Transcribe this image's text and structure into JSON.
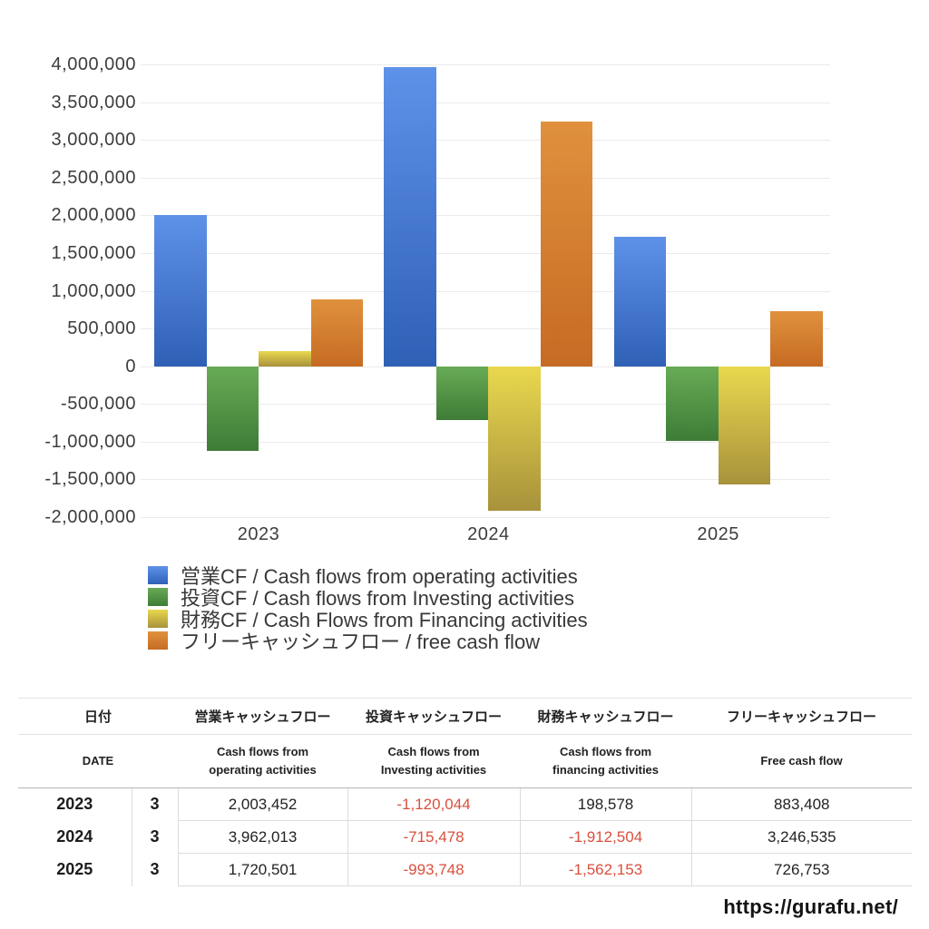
{
  "chart_data": {
    "type": "bar",
    "title": "",
    "xlabel": "",
    "ylabel": "",
    "categories": [
      "2023",
      "2024",
      "2025"
    ],
    "series": [
      {
        "name": "営業CF / Cash flows from operating activities",
        "values": [
          2003452,
          3962013,
          1720501
        ],
        "color_top": "#5e92e8",
        "color_bottom": "#2e60b6"
      },
      {
        "name": "投資CF / Cash flows from Investing activities",
        "values": [
          -1120044,
          -715478,
          -993748
        ],
        "color_top": "#68ab55",
        "color_bottom": "#3e7c37"
      },
      {
        "name": "財務CF / Cash Flows from Financing activities",
        "values": [
          198578,
          -1912504,
          -1562153
        ],
        "color_top": "#e9d84e",
        "color_bottom": "#a8923c"
      },
      {
        "name": "フリーキャッシュフロー / free cash flow",
        "values": [
          883408,
          3246535,
          726753
        ],
        "color_top": "#e0913d",
        "color_bottom": "#c66b24"
      }
    ],
    "ylim": [
      -2000000,
      4000000
    ],
    "y_ticks": [
      "4,000,000",
      "3,500,000",
      "3,000,000",
      "2,500,000",
      "2,000,000",
      "1,500,000",
      "1,000,000",
      "500,000",
      "0",
      "-500,000",
      "-1,000,000",
      "-1,500,000",
      "-2,000,000"
    ],
    "grid": true,
    "legend_position": "bottom-left"
  },
  "table": {
    "headers_jp": [
      "日付",
      "営業キャッシュフロー",
      "投資キャッシュフロー",
      "財務キャッシュフロー",
      "フリーキャッシュフロー"
    ],
    "headers_en": [
      "DATE",
      "Cash flows from\noperating activities",
      "Cash flows from\nInvesting activities",
      "Cash flows from\nfinancing activities",
      "Free cash flow"
    ],
    "rows": [
      {
        "year": "2023",
        "month": "3",
        "values": [
          "2,003,452",
          "-1,120,044",
          "198,578",
          "883,408"
        ]
      },
      {
        "year": "2024",
        "month": "3",
        "values": [
          "3,962,013",
          "-715,478",
          "-1,912,504",
          "3,246,535"
        ]
      },
      {
        "year": "2025",
        "month": "3",
        "values": [
          "1,720,501",
          "-993,748",
          "-1,562,153",
          "726,753"
        ]
      }
    ]
  },
  "footer": {
    "url": "https://gurafu.net/"
  },
  "colors": {
    "negative_text": "#d9503e",
    "axis_text": "#3d3d3d",
    "gridline": "#eaeaea",
    "table_border_light": "#dcdcdc",
    "table_border_dark": "#b5b5b5"
  }
}
